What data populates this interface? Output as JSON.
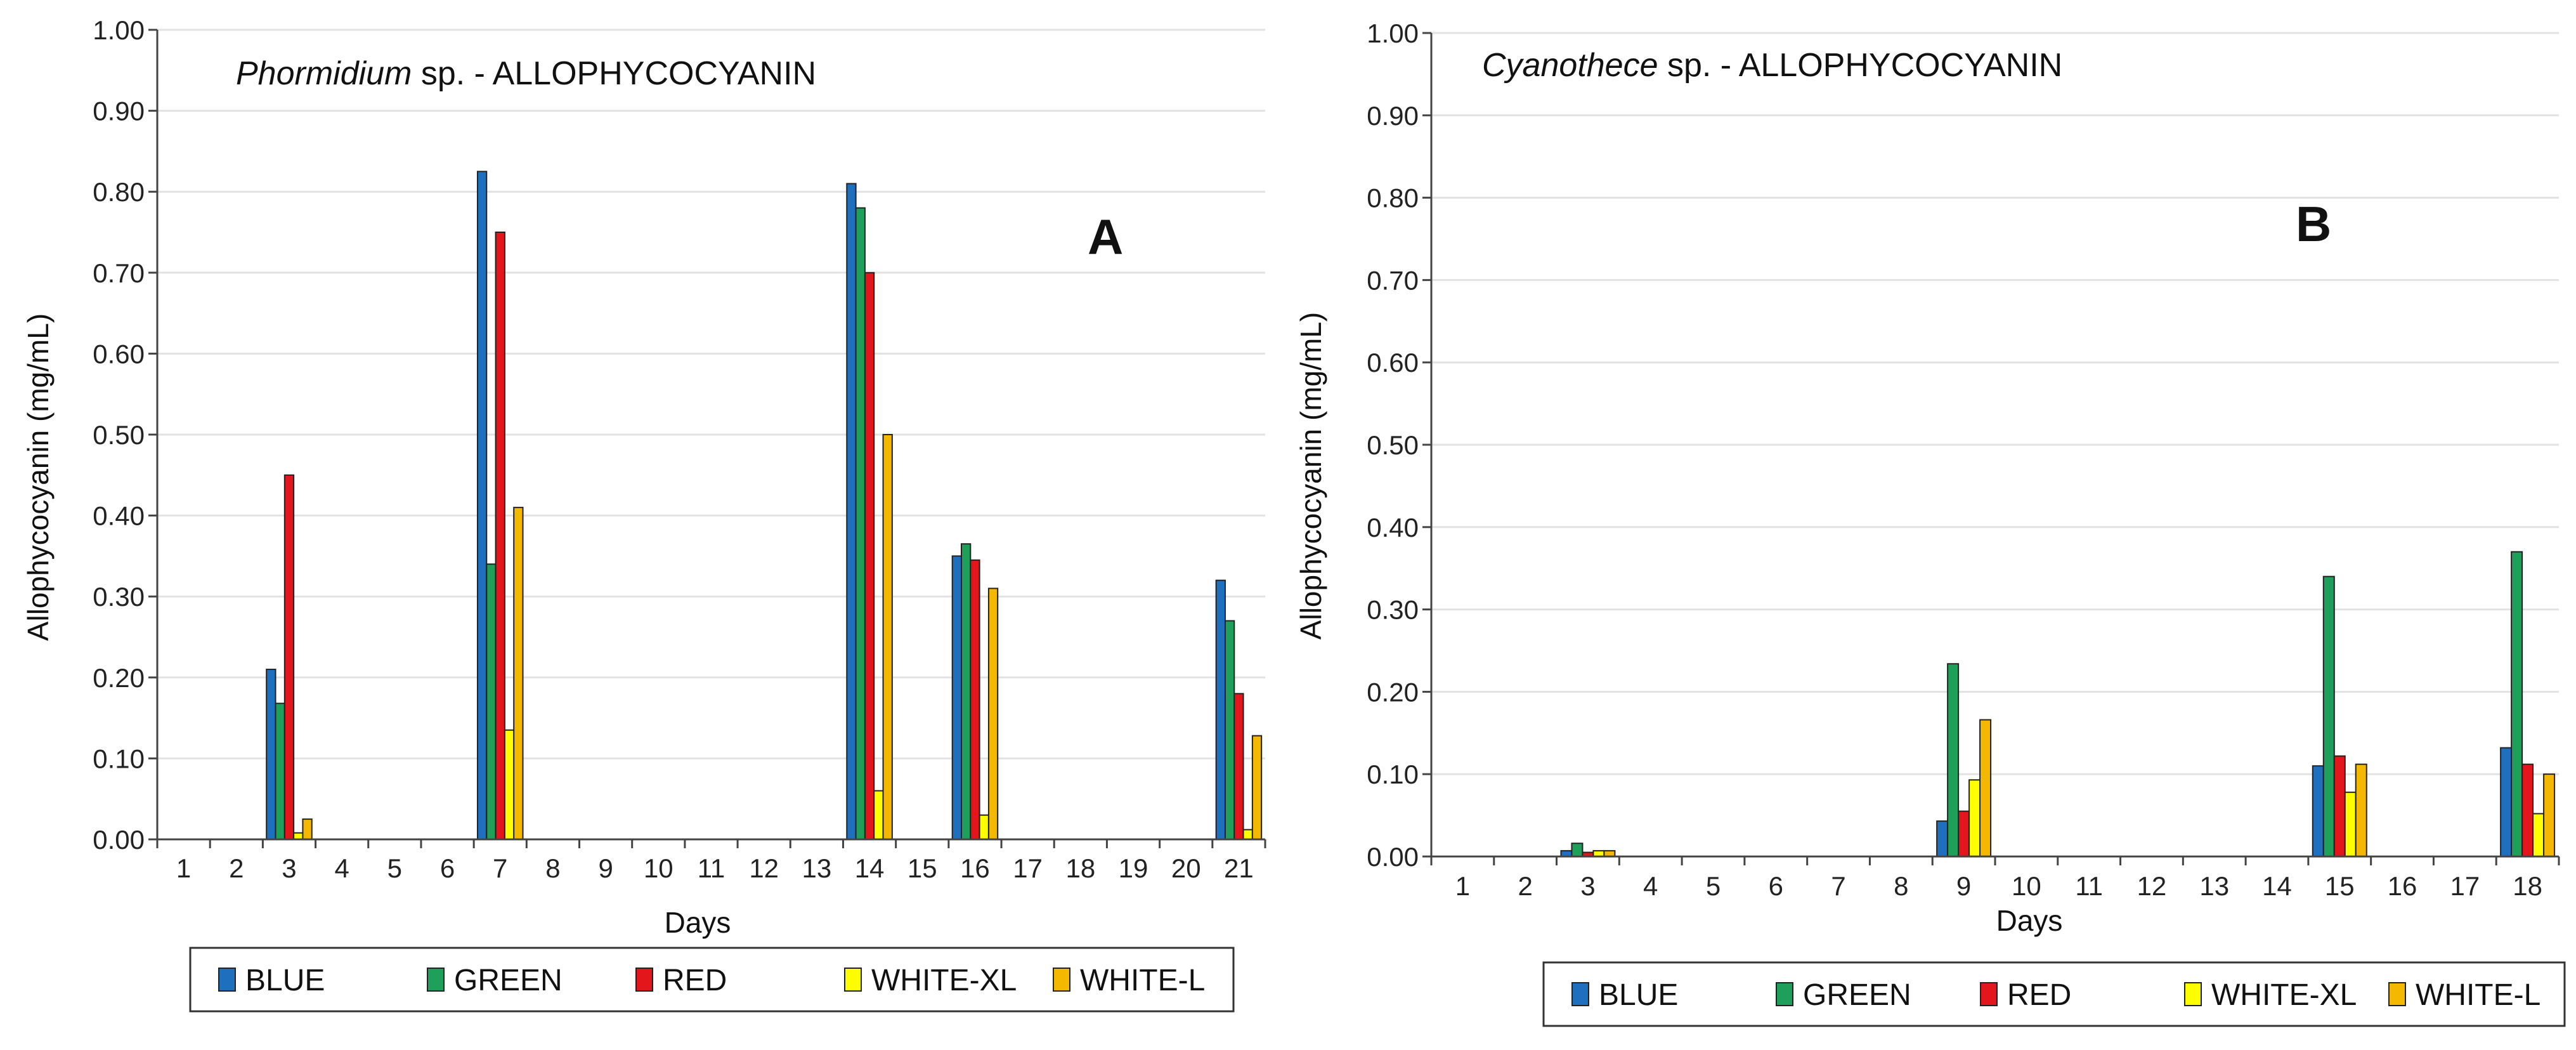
{
  "chart_data": [
    {
      "type": "bar",
      "panel": "A",
      "title_italic": "Phormidium",
      "title_rest": " sp.  - ALLOPHYCOCYANIN",
      "xlabel": "Days",
      "ylabel": "Allophycocyanin (mg/mL)",
      "ylim": [
        0,
        1.0
      ],
      "yticks": [
        "0.00",
        "0.10",
        "0.20",
        "0.30",
        "0.40",
        "0.50",
        "0.60",
        "0.70",
        "0.80",
        "0.90",
        "1.00"
      ],
      "categories": [
        "1",
        "2",
        "3",
        "4",
        "5",
        "6",
        "7",
        "8",
        "9",
        "10",
        "11",
        "12",
        "13",
        "14",
        "15",
        "16",
        "17",
        "18",
        "19",
        "20",
        "21"
      ],
      "series": [
        {
          "name": "BLUE",
          "color": "#1f6fbf",
          "values": [
            null,
            null,
            0.21,
            null,
            null,
            null,
            0.825,
            null,
            null,
            null,
            null,
            null,
            null,
            0.81,
            null,
            0.35,
            null,
            null,
            null,
            null,
            0.32
          ]
        },
        {
          "name": "GREEN",
          "color": "#1fa05a",
          "values": [
            null,
            null,
            0.168,
            null,
            null,
            null,
            0.34,
            null,
            null,
            null,
            null,
            null,
            null,
            0.78,
            null,
            0.365,
            null,
            null,
            null,
            null,
            0.27
          ]
        },
        {
          "name": "RED",
          "color": "#e3161b",
          "values": [
            null,
            null,
            0.45,
            null,
            null,
            null,
            0.75,
            null,
            null,
            null,
            null,
            null,
            null,
            0.7,
            null,
            0.345,
            null,
            null,
            null,
            null,
            0.18
          ]
        },
        {
          "name": "WHITE-XL",
          "color": "#ffff00",
          "values": [
            null,
            null,
            0.008,
            null,
            null,
            null,
            0.135,
            null,
            null,
            null,
            null,
            null,
            null,
            0.06,
            null,
            0.03,
            null,
            null,
            null,
            null,
            0.012
          ]
        },
        {
          "name": "WHITE-L",
          "color": "#f5b800",
          "values": [
            null,
            null,
            0.025,
            null,
            null,
            null,
            0.41,
            null,
            null,
            null,
            null,
            null,
            null,
            0.5,
            null,
            0.31,
            null,
            null,
            null,
            null,
            0.128
          ]
        }
      ]
    },
    {
      "type": "bar",
      "panel": "B",
      "title_italic": "Cyanothece",
      "title_rest": " sp. - ALLOPHYCOCYANIN",
      "xlabel": "Days",
      "ylabel": "Allophycocyanin (mg/mL)",
      "ylim": [
        0,
        1.0
      ],
      "yticks": [
        "0.00",
        "0.10",
        "0.20",
        "0.30",
        "0.40",
        "0.50",
        "0.60",
        "0.70",
        "0.80",
        "0.90",
        "1.00"
      ],
      "categories": [
        "1",
        "2",
        "3",
        "4",
        "5",
        "6",
        "7",
        "8",
        "9",
        "10",
        "11",
        "12",
        "13",
        "14",
        "15",
        "16",
        "17",
        "18"
      ],
      "series": [
        {
          "name": "BLUE",
          "color": "#1f6fbf",
          "values": [
            null,
            null,
            0.007,
            null,
            null,
            null,
            null,
            null,
            0.043,
            null,
            null,
            null,
            null,
            null,
            0.11,
            null,
            null,
            0.132
          ]
        },
        {
          "name": "GREEN",
          "color": "#1fa05a",
          "values": [
            null,
            null,
            0.016,
            null,
            null,
            null,
            null,
            null,
            0.234,
            null,
            null,
            null,
            null,
            null,
            0.34,
            null,
            null,
            0.37
          ]
        },
        {
          "name": "RED",
          "color": "#e3161b",
          "values": [
            null,
            null,
            0.005,
            null,
            null,
            null,
            null,
            null,
            0.055,
            null,
            null,
            null,
            null,
            null,
            0.122,
            null,
            null,
            0.112
          ]
        },
        {
          "name": "WHITE-XL",
          "color": "#ffff00",
          "values": [
            null,
            null,
            0.007,
            null,
            null,
            null,
            null,
            null,
            0.093,
            null,
            null,
            null,
            null,
            null,
            0.078,
            null,
            null,
            0.052
          ]
        },
        {
          "name": "WHITE-L",
          "color": "#f5b800",
          "values": [
            null,
            null,
            0.007,
            null,
            null,
            null,
            null,
            null,
            0.166,
            null,
            null,
            null,
            null,
            null,
            0.112,
            null,
            null,
            0.1
          ]
        }
      ]
    }
  ]
}
